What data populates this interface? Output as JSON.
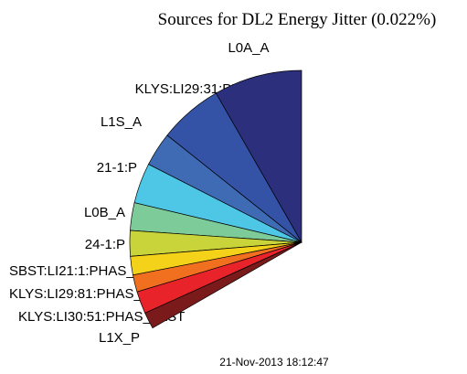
{
  "chart_data": {
    "type": "pie",
    "title": "Sources for DL2 Energy Jitter (0.022%)",
    "footer": "21-Nov-2013 18:12:47",
    "categories": [
      "L0A_A",
      "KLYS:LI29:31:PHAS_FAST",
      "L1S_A",
      "21-1:P",
      "L0B_A",
      "24-1:P",
      "SBST:LI21:1:PHAS_FAST",
      "KLYS:LI29:81:PHAS_FAST",
      "KLYS:LI30:51:PHAS_FAST",
      "L1X_P"
    ],
    "values": [
      8.3,
      6.0,
      3.2,
      3.8,
      2.6,
      2.4,
      1.75,
      1.6,
      2.1,
      1.55
    ],
    "colors": [
      "#2b2f7c",
      "#3452a6",
      "#3e6bb4",
      "#4ec6e6",
      "#7ecb9a",
      "#c8d43a",
      "#f5d21a",
      "#f07020",
      "#e8232a",
      "#7a1a1a"
    ]
  }
}
